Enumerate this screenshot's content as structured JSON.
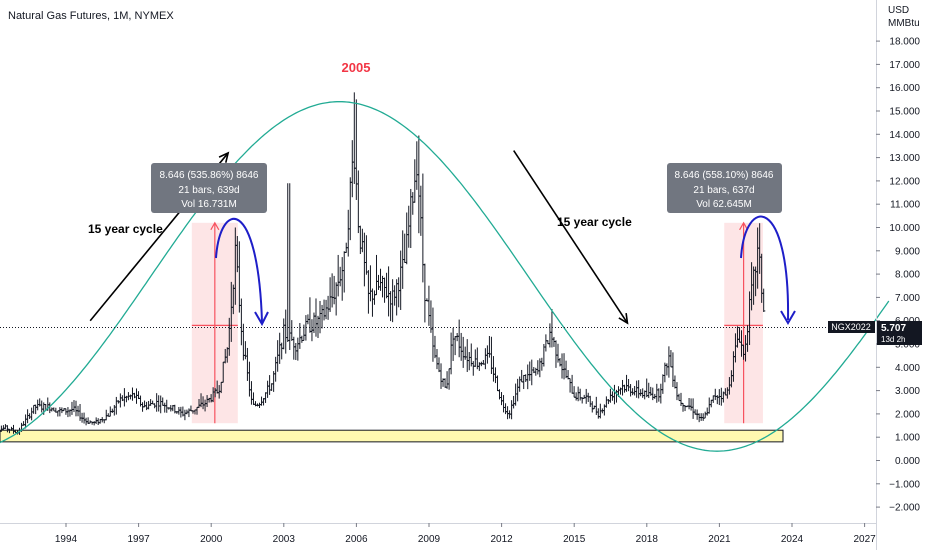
{
  "header": {
    "title": "Natural Gas Futures, 1M, NYMEX",
    "currency": "USD",
    "unit": "MMBtu"
  },
  "annotations": {
    "peak_year": "2005",
    "cycle_label_left": "15 year cycle",
    "cycle_label_right": "15 year cycle",
    "box_left": {
      "line1": "8.646 (535.86%) 8646",
      "line2": "21 bars, 639d",
      "line3": "Vol 16.731M"
    },
    "box_right": {
      "line1": "8.646 (558.10%) 8646",
      "line2": "21 bars, 637d",
      "line3": "Vol 62.645M"
    }
  },
  "price_tag": {
    "symbol": "NGX2022",
    "price": "5.707",
    "countdown": "13d 2h"
  },
  "colors": {
    "cycle_curve": "#22ab94",
    "peak_label": "#f23645",
    "arrow_blue": "#1e1ec8",
    "support_band": "#fff9b0",
    "measure_fill": "#fde0e2",
    "measure_line": "#f7525f",
    "box_bg": "#717680",
    "tag_bg": "#131722"
  },
  "chart_data": {
    "type": "ohlc",
    "title": "Natural Gas Futures, 1M, NYMEX",
    "ylabel": "USD / MMBtu",
    "ylim": [
      -2.6,
      19.0
    ],
    "xlim": [
      1990.8,
      2028.0
    ],
    "x_ticks": [
      "1994",
      "1997",
      "2000",
      "2003",
      "2006",
      "2009",
      "2012",
      "2015",
      "2018",
      "2021",
      "2024",
      "2027"
    ],
    "y_ticks": [
      "18.000",
      "17.000",
      "16.000",
      "15.000",
      "14.000",
      "13.000",
      "12.000",
      "11.000",
      "10.000",
      "9.000",
      "8.000",
      "7.000",
      "6.000",
      "5.000",
      "4.000",
      "3.000",
      "2.000",
      "1.000",
      "0.000",
      "−1.000",
      "−2.000"
    ],
    "last_price": 5.707,
    "support_zone": [
      0.8,
      1.3
    ],
    "price_path": [
      [
        1990.8,
        1.2
      ],
      [
        1991.5,
        1.4
      ],
      [
        1992.0,
        1.2
      ],
      [
        1992.7,
        2.3
      ],
      [
        1993.3,
        2.3
      ],
      [
        1993.8,
        2.1
      ],
      [
        1994.3,
        2.2
      ],
      [
        1994.8,
        1.7
      ],
      [
        1995.2,
        1.6
      ],
      [
        1995.8,
        2.0
      ],
      [
        1996.2,
        2.6
      ],
      [
        1996.8,
        2.8
      ],
      [
        1997.2,
        2.3
      ],
      [
        1997.8,
        2.5
      ],
      [
        1998.3,
        2.3
      ],
      [
        1998.8,
        2.0
      ],
      [
        1999.3,
        2.2
      ],
      [
        1999.8,
        2.5
      ],
      [
        2000.3,
        3.0
      ],
      [
        2000.7,
        5.0
      ],
      [
        2001.0,
        9.0
      ],
      [
        2001.3,
        5.0
      ],
      [
        2001.7,
        2.3
      ],
      [
        2002.0,
        2.5
      ],
      [
        2002.5,
        3.3
      ],
      [
        2003.0,
        5.5
      ],
      [
        2003.5,
        5.0
      ],
      [
        2004.0,
        5.8
      ],
      [
        2004.5,
        6.0
      ],
      [
        2005.0,
        7.0
      ],
      [
        2005.5,
        8.5
      ],
      [
        2005.9,
        13.5
      ],
      [
        2006.1,
        10.0
      ],
      [
        2006.5,
        7.0
      ],
      [
        2007.0,
        7.5
      ],
      [
        2007.5,
        7.0
      ],
      [
        2008.0,
        8.5
      ],
      [
        2008.5,
        13.0
      ],
      [
        2008.8,
        7.5
      ],
      [
        2009.2,
        4.5
      ],
      [
        2009.7,
        3.0
      ],
      [
        2010.0,
        5.5
      ],
      [
        2010.5,
        4.5
      ],
      [
        2011.0,
        4.2
      ],
      [
        2011.5,
        4.4
      ],
      [
        2012.0,
        2.5
      ],
      [
        2012.3,
        2.0
      ],
      [
        2012.8,
        3.5
      ],
      [
        2013.5,
        3.8
      ],
      [
        2014.0,
        5.5
      ],
      [
        2014.5,
        4.0
      ],
      [
        2015.0,
        2.8
      ],
      [
        2015.5,
        2.7
      ],
      [
        2016.0,
        2.0
      ],
      [
        2016.5,
        2.8
      ],
      [
        2017.0,
        3.2
      ],
      [
        2017.5,
        3.0
      ],
      [
        2018.0,
        2.8
      ],
      [
        2018.5,
        2.9
      ],
      [
        2018.9,
        4.5
      ],
      [
        2019.3,
        2.6
      ],
      [
        2019.8,
        2.3
      ],
      [
        2020.3,
        1.7
      ],
      [
        2020.8,
        2.8
      ],
      [
        2021.3,
        2.8
      ],
      [
        2021.8,
        5.5
      ],
      [
        2022.0,
        4.5
      ],
      [
        2022.3,
        7.0
      ],
      [
        2022.6,
        9.0
      ],
      [
        2022.9,
        5.7
      ]
    ],
    "cycle_curve": {
      "name": "15 year cycle",
      "points": [
        [
          1990.8,
          0.4
        ],
        [
          2005.3,
          15.4
        ],
        [
          2020.9,
          0.4
        ],
        [
          2028.0,
          7.6
        ]
      ]
    },
    "measure_boxes": [
      {
        "x0": 1999.2,
        "x1": 2001.1,
        "y0": 1.6,
        "y1": 10.2
      },
      {
        "x0": 2021.2,
        "x1": 2022.8,
        "y0": 1.6,
        "y1": 10.2
      }
    ],
    "arrows": [
      {
        "name": "cycle-up-arrow",
        "x0": 1995.0,
        "y0": 6.0,
        "x1": 2000.7,
        "y1": 13.2
      },
      {
        "name": "cycle-down-arrow",
        "x0": 2012.5,
        "y0": 13.3,
        "x1": 2017.2,
        "y1": 5.9
      }
    ]
  }
}
